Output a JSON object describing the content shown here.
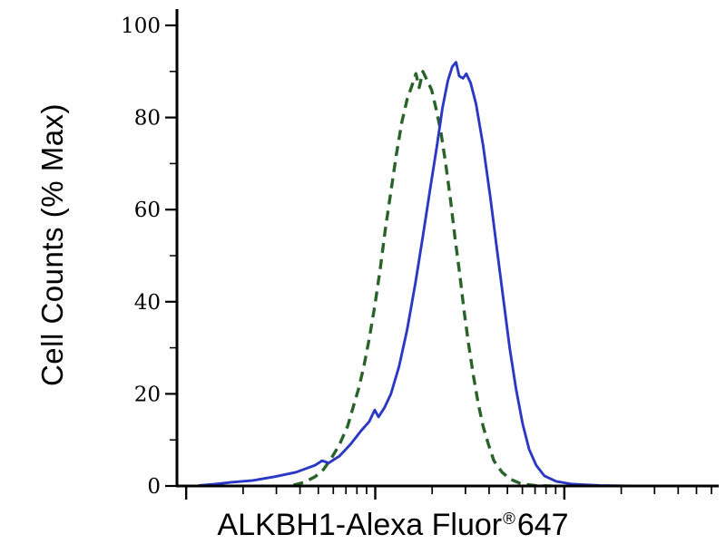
{
  "page": {
    "background": "#ffffff"
  },
  "chart_data": {
    "type": "line",
    "title": "",
    "ylabel": "Cell Counts (% Max)",
    "xlabel": "ALKBH1-Alexa Fluor® 647",
    "xlabel_parts": {
      "pre": "ALKBH1-Alexa Fluor",
      "registered": "®",
      "post": "647"
    },
    "grid": false,
    "legend": "none",
    "y_axis": {
      "range": [
        0,
        100
      ],
      "ticks": [
        0,
        20,
        40,
        60,
        80,
        100
      ],
      "minor_ticks": [
        10,
        30,
        50,
        70,
        90
      ]
    },
    "x_axis": {
      "scale": "log",
      "tick_labels": [],
      "decade_start_fraction": 0.017,
      "decade_width_fraction": 0.349,
      "decades": 3
    },
    "series": [
      {
        "name": "control-dashed-green",
        "style": "dashed",
        "color": "#2a632a",
        "width": 3.4,
        "dash": "11 7",
        "points": [
          [
            0.215,
            0.2
          ],
          [
            0.235,
            0.8
          ],
          [
            0.255,
            2
          ],
          [
            0.27,
            3.5
          ],
          [
            0.285,
            6
          ],
          [
            0.3,
            9
          ],
          [
            0.315,
            13
          ],
          [
            0.325,
            17
          ],
          [
            0.335,
            21
          ],
          [
            0.345,
            26
          ],
          [
            0.355,
            32
          ],
          [
            0.365,
            39
          ],
          [
            0.375,
            47
          ],
          [
            0.385,
            56
          ],
          [
            0.395,
            64
          ],
          [
            0.405,
            72
          ],
          [
            0.415,
            79
          ],
          [
            0.425,
            84
          ],
          [
            0.434,
            87
          ],
          [
            0.441,
            89.5
          ],
          [
            0.447,
            86.5
          ],
          [
            0.454,
            90
          ],
          [
            0.462,
            88
          ],
          [
            0.47,
            86
          ],
          [
            0.478,
            82
          ],
          [
            0.487,
            77
          ],
          [
            0.496,
            70
          ],
          [
            0.505,
            62
          ],
          [
            0.513,
            54
          ],
          [
            0.522,
            46
          ],
          [
            0.53,
            38
          ],
          [
            0.538,
            31
          ],
          [
            0.547,
            24
          ],
          [
            0.556,
            18
          ],
          [
            0.565,
            13
          ],
          [
            0.575,
            9
          ],
          [
            0.585,
            5.5
          ],
          [
            0.6,
            3
          ],
          [
            0.615,
            1.5
          ],
          [
            0.635,
            0.5
          ],
          [
            0.66,
            0.1
          ],
          [
            0.69,
            0
          ]
        ]
      },
      {
        "name": "ALKBH1-Alexa-Fluor-647-solid-blue",
        "style": "solid",
        "color": "#2a38c4",
        "width": 2.9,
        "dash": "",
        "points": [
          [
            0.04,
            0.1
          ],
          [
            0.07,
            0.4
          ],
          [
            0.1,
            0.8
          ],
          [
            0.14,
            1.2
          ],
          [
            0.18,
            2
          ],
          [
            0.22,
            3
          ],
          [
            0.255,
            4.5
          ],
          [
            0.268,
            5.5
          ],
          [
            0.28,
            5
          ],
          [
            0.3,
            6.5
          ],
          [
            0.32,
            9
          ],
          [
            0.34,
            12
          ],
          [
            0.355,
            14
          ],
          [
            0.365,
            16.5
          ],
          [
            0.372,
            15
          ],
          [
            0.383,
            17
          ],
          [
            0.395,
            20
          ],
          [
            0.41,
            26
          ],
          [
            0.425,
            34
          ],
          [
            0.44,
            44
          ],
          [
            0.455,
            55
          ],
          [
            0.468,
            65
          ],
          [
            0.48,
            74
          ],
          [
            0.49,
            82
          ],
          [
            0.5,
            88
          ],
          [
            0.508,
            91
          ],
          [
            0.515,
            92
          ],
          [
            0.521,
            89
          ],
          [
            0.528,
            88.5
          ],
          [
            0.534,
            89.5
          ],
          [
            0.542,
            87.5
          ],
          [
            0.552,
            83
          ],
          [
            0.565,
            74
          ],
          [
            0.578,
            63
          ],
          [
            0.59,
            52
          ],
          [
            0.602,
            41
          ],
          [
            0.614,
            30
          ],
          [
            0.626,
            21
          ],
          [
            0.638,
            13.5
          ],
          [
            0.65,
            8
          ],
          [
            0.663,
            4.5
          ],
          [
            0.678,
            2.2
          ],
          [
            0.7,
            1
          ],
          [
            0.73,
            0.4
          ],
          [
            0.78,
            0.1
          ],
          [
            0.83,
            0
          ]
        ]
      }
    ]
  }
}
